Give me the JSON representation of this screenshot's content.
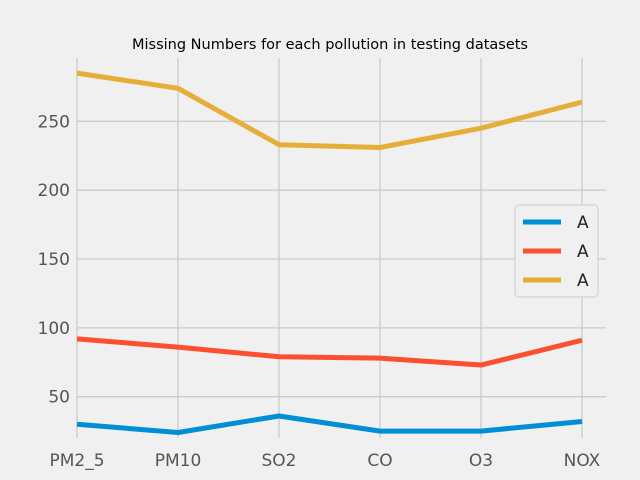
{
  "chart_data": {
    "type": "line",
    "title": "Missing Numbers for each pollution in testing datasets",
    "xlabel": "",
    "ylabel": "",
    "categories": [
      "PM2_5",
      "PM10",
      "SO2",
      "CO",
      "O3",
      "NOX"
    ],
    "ylim": [
      20,
      296
    ],
    "yticks": [
      50,
      100,
      150,
      200,
      250
    ],
    "grid": true,
    "legend_position": "right",
    "series": [
      {
        "name": "A",
        "color": "#008fd5",
        "values": [
          30,
          24,
          36,
          25,
          25,
          32
        ]
      },
      {
        "name": "A",
        "color": "#fc4f30",
        "values": [
          92,
          86,
          79,
          78,
          73,
          91
        ]
      },
      {
        "name": "A",
        "color": "#e5ae38",
        "values": [
          285,
          274,
          233,
          231,
          245,
          264
        ]
      }
    ]
  }
}
